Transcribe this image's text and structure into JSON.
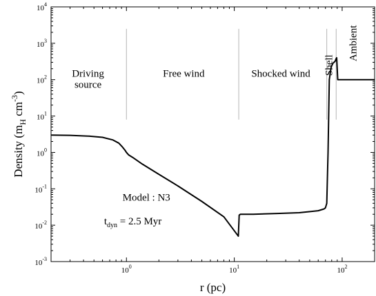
{
  "chart_data": {
    "type": "line",
    "title": "",
    "xlabel": {
      "main": "r (pc)"
    },
    "ylabel": {
      "pre": "Density (m",
      "sub": "H",
      "mid": " cm",
      "sup": "-3",
      "post": ")"
    },
    "x_scale": "log",
    "y_scale": "log",
    "xlim": [
      0.2,
      200
    ],
    "ylim": [
      0.001,
      10000
    ],
    "x_ticks": [
      {
        "value": 1,
        "base": "10",
        "exp": "0"
      },
      {
        "value": 10,
        "base": "10",
        "exp": "1"
      },
      {
        "value": 100,
        "base": "10",
        "exp": "2"
      }
    ],
    "y_ticks": [
      {
        "value": 0.001,
        "base": "10",
        "exp": "-3"
      },
      {
        "value": 0.01,
        "base": "10",
        "exp": "-2"
      },
      {
        "value": 0.1,
        "base": "10",
        "exp": "-1"
      },
      {
        "value": 1,
        "base": "10",
        "exp": "0"
      },
      {
        "value": 10,
        "base": "10",
        "exp": "1"
      },
      {
        "value": 100,
        "base": "10",
        "exp": "2"
      },
      {
        "value": 1000,
        "base": "10",
        "exp": "3"
      },
      {
        "value": 10000,
        "base": "10",
        "exp": "4"
      }
    ],
    "grid": false,
    "series": [
      {
        "x": [
          0.2,
          0.3,
          0.45,
          0.6,
          0.75,
          0.85,
          0.92,
          0.97,
          1.0,
          1.05,
          1.15,
          1.4,
          2,
          3,
          5,
          8,
          10.9,
          11.1,
          11.4,
          15,
          25,
          40,
          60,
          68,
          70,
          72,
          74,
          76,
          79,
          82,
          86,
          88,
          89,
          90,
          91,
          120,
          200
        ],
        "y": [
          3.0,
          2.95,
          2.8,
          2.6,
          2.2,
          1.8,
          1.4,
          1.15,
          1.0,
          0.85,
          0.72,
          0.48,
          0.25,
          0.12,
          0.045,
          0.017,
          0.005,
          0.019,
          0.02,
          0.02,
          0.021,
          0.022,
          0.025,
          0.028,
          0.03,
          0.04,
          1.0,
          100,
          220,
          280,
          320,
          380,
          400,
          200,
          100,
          100,
          100
        ]
      }
    ],
    "region_labels": [
      {
        "lines": [
          "Driving",
          "source"
        ],
        "x": 0.44,
        "y": [
          120,
          60
        ]
      },
      {
        "lines": [
          "Free wind"
        ],
        "x": 3.4,
        "y": [
          120
        ]
      },
      {
        "lines": [
          "Shocked wind"
        ],
        "x": 27,
        "y": [
          120
        ]
      },
      {
        "lines": [
          "Shell"
        ],
        "x": 81,
        "y": [
          250
        ],
        "rotated": true
      },
      {
        "lines": [
          "Ambient"
        ],
        "x": 135,
        "y": [
          1000
        ],
        "rotated": true
      }
    ],
    "dividers": [
      {
        "x": 1.0,
        "y_from": 8,
        "y_to": 2500
      },
      {
        "x": 11.0,
        "y_from": 8,
        "y_to": 2500
      },
      {
        "x": 72,
        "y_from": 8,
        "y_to": 2500
      },
      {
        "x": 88,
        "y_from": 8,
        "y_to": 2500
      }
    ],
    "annotations": [
      {
        "parts": [
          {
            "t": "Model : N3"
          }
        ],
        "x": 0.92,
        "y": 0.047
      },
      {
        "parts": [
          {
            "t": "t"
          },
          {
            "t": "dyn",
            "sub": true
          },
          {
            "t": " = 2.5 Myr"
          }
        ],
        "x": 0.62,
        "y": 0.0105
      }
    ]
  }
}
